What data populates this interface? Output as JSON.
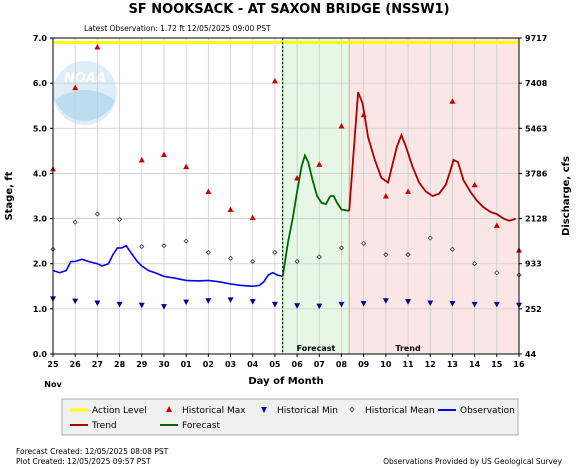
{
  "title": "SF NOOKSACK - AT SAXON BRIDGE  (NSSW1)",
  "latest_observation": "Latest Observation: 1.72 ft 12/05/2025 09:00 PST",
  "watermark": "NOAA",
  "colors": {
    "action": "#ffff00",
    "forecast_bg": "#e6f7e6",
    "trend_bg": "#fbe6e6",
    "observation": "#0000ff",
    "forecast": "#006600",
    "trend": "#aa0000",
    "hist_max": "#cc0000",
    "hist_min": "#000099",
    "grid": "#cccccc"
  },
  "chart_data": {
    "type": "line",
    "xlabel": "Day of Month",
    "x_month_label": "Nov",
    "ylabel_left": "Stage, ft",
    "ylabel_right": "Discharge, cfs",
    "ylim": [
      0,
      7
    ],
    "y_ticks": [
      "0.0",
      "1.0",
      "2.0",
      "3.0",
      "4.0",
      "5.0",
      "6.0",
      "7.0"
    ],
    "right_ticks": [
      {
        "label": "44",
        "stage": 0
      },
      {
        "label": "252",
        "stage": 1.0
      },
      {
        "label": "933",
        "stage": 2.0
      },
      {
        "label": "2128",
        "stage": 3.0
      },
      {
        "label": "3786",
        "stage": 4.0
      },
      {
        "label": "5463",
        "stage": 5.0
      },
      {
        "label": "7408",
        "stage": 6.0
      },
      {
        "label": "9717",
        "stage": 7.0
      }
    ],
    "x_range": [
      0,
      21
    ],
    "x_tick_labels": [
      "25",
      "26",
      "27",
      "28",
      "29",
      "30",
      "01",
      "02",
      "03",
      "04",
      "05",
      "06",
      "07",
      "08",
      "09",
      "10",
      "11",
      "12",
      "13",
      "14",
      "15",
      "16"
    ],
    "action_level": 6.9,
    "now_x": 10.35,
    "forecast_start": 10.35,
    "trend_start": 13.35,
    "trend_end": 21,
    "band_labels": {
      "forecast": "Forecast",
      "trend": "Trend"
    },
    "observation": [
      [
        0,
        1.85
      ],
      [
        0.3,
        1.8
      ],
      [
        0.6,
        1.85
      ],
      [
        0.8,
        2.05
      ],
      [
        1,
        2.05
      ],
      [
        1.3,
        2.1
      ],
      [
        1.6,
        2.05
      ],
      [
        2,
        2.0
      ],
      [
        2.2,
        1.95
      ],
      [
        2.5,
        2.0
      ],
      [
        2.7,
        2.2
      ],
      [
        2.9,
        2.35
      ],
      [
        3.1,
        2.35
      ],
      [
        3.3,
        2.4
      ],
      [
        3.5,
        2.25
      ],
      [
        3.8,
        2.05
      ],
      [
        4,
        1.95
      ],
      [
        4.3,
        1.85
      ],
      [
        4.6,
        1.8
      ],
      [
        5,
        1.72
      ],
      [
        5.5,
        1.68
      ],
      [
        6,
        1.63
      ],
      [
        6.5,
        1.62
      ],
      [
        7,
        1.63
      ],
      [
        7.5,
        1.6
      ],
      [
        8,
        1.55
      ],
      [
        8.5,
        1.52
      ],
      [
        9,
        1.5
      ],
      [
        9.3,
        1.52
      ],
      [
        9.5,
        1.6
      ],
      [
        9.7,
        1.75
      ],
      [
        9.9,
        1.8
      ],
      [
        10.1,
        1.75
      ],
      [
        10.35,
        1.72
      ]
    ],
    "forecast": [
      [
        10.35,
        1.72
      ],
      [
        10.6,
        2.5
      ],
      [
        10.8,
        3.0
      ],
      [
        11,
        3.6
      ],
      [
        11.2,
        4.15
      ],
      [
        11.35,
        4.4
      ],
      [
        11.5,
        4.25
      ],
      [
        11.7,
        3.85
      ],
      [
        11.9,
        3.5
      ],
      [
        12.1,
        3.35
      ],
      [
        12.3,
        3.32
      ],
      [
        12.5,
        3.5
      ],
      [
        12.65,
        3.5
      ],
      [
        12.8,
        3.35
      ],
      [
        13,
        3.2
      ],
      [
        13.35,
        3.17
      ]
    ],
    "trend": [
      [
        13.35,
        3.17
      ],
      [
        13.55,
        4.5
      ],
      [
        13.75,
        5.8
      ],
      [
        13.95,
        5.55
      ],
      [
        14.2,
        4.8
      ],
      [
        14.5,
        4.3
      ],
      [
        14.8,
        3.9
      ],
      [
        15.1,
        3.8
      ],
      [
        15.3,
        4.2
      ],
      [
        15.5,
        4.6
      ],
      [
        15.7,
        4.85
      ],
      [
        15.9,
        4.6
      ],
      [
        16.2,
        4.15
      ],
      [
        16.5,
        3.8
      ],
      [
        16.8,
        3.6
      ],
      [
        17.1,
        3.5
      ],
      [
        17.4,
        3.55
      ],
      [
        17.7,
        3.75
      ],
      [
        17.9,
        4.05
      ],
      [
        18.05,
        4.3
      ],
      [
        18.25,
        4.25
      ],
      [
        18.5,
        3.85
      ],
      [
        18.8,
        3.6
      ],
      [
        19.1,
        3.4
      ],
      [
        19.4,
        3.25
      ],
      [
        19.7,
        3.15
      ],
      [
        20,
        3.1
      ],
      [
        20.3,
        3.0
      ],
      [
        20.55,
        2.95
      ],
      [
        20.7,
        2.97
      ],
      [
        20.85,
        3.0
      ]
    ],
    "historical_max": [
      [
        0,
        4.1
      ],
      [
        1,
        5.9
      ],
      [
        2,
        6.8
      ],
      [
        4,
        4.3
      ],
      [
        5,
        4.42
      ],
      [
        6,
        4.15
      ],
      [
        7,
        3.6
      ],
      [
        8,
        3.2
      ],
      [
        9,
        3.02
      ],
      [
        10,
        6.05
      ],
      [
        11,
        3.9
      ],
      [
        12,
        4.2
      ],
      [
        13,
        5.05
      ],
      [
        14,
        5.3
      ],
      [
        15,
        3.5
      ],
      [
        16,
        3.6
      ],
      [
        18,
        5.6
      ],
      [
        19,
        3.75
      ],
      [
        20,
        2.85
      ],
      [
        21,
        2.3
      ]
    ],
    "historical_min": [
      [
        0,
        1.22
      ],
      [
        1,
        1.17
      ],
      [
        2,
        1.13
      ],
      [
        3,
        1.1
      ],
      [
        4,
        1.08
      ],
      [
        5,
        1.05
      ],
      [
        6,
        1.15
      ],
      [
        7,
        1.18
      ],
      [
        8,
        1.2
      ],
      [
        9,
        1.16
      ],
      [
        10,
        1.1
      ],
      [
        11,
        1.07
      ],
      [
        12,
        1.06
      ],
      [
        13,
        1.1
      ],
      [
        14,
        1.12
      ],
      [
        15,
        1.18
      ],
      [
        16,
        1.16
      ],
      [
        17,
        1.13
      ],
      [
        18,
        1.12
      ],
      [
        19,
        1.1
      ],
      [
        20,
        1.1
      ],
      [
        21,
        1.08
      ]
    ],
    "historical_mean": [
      [
        0,
        2.32
      ],
      [
        1,
        2.92
      ],
      [
        2,
        3.1
      ],
      [
        3,
        2.98
      ],
      [
        4,
        2.38
      ],
      [
        5,
        2.4
      ],
      [
        6,
        2.5
      ],
      [
        7,
        2.25
      ],
      [
        8,
        2.12
      ],
      [
        9,
        2.05
      ],
      [
        10,
        2.25
      ],
      [
        11,
        2.05
      ],
      [
        12,
        2.15
      ],
      [
        13,
        2.35
      ],
      [
        14,
        2.45
      ],
      [
        15,
        2.2
      ],
      [
        16,
        2.2
      ],
      [
        17,
        2.57
      ],
      [
        18,
        2.32
      ],
      [
        19,
        2.0
      ],
      [
        20,
        1.8
      ],
      [
        21,
        1.75
      ]
    ]
  },
  "legend": [
    {
      "key": "action",
      "label": "Action Level"
    },
    {
      "key": "hist_max",
      "label": "Historical Max"
    },
    {
      "key": "hist_min",
      "label": "Historical Min"
    },
    {
      "key": "hist_mean",
      "label": "Historical Mean"
    },
    {
      "key": "observation",
      "label": "Observation"
    },
    {
      "key": "trend",
      "label": "Trend"
    },
    {
      "key": "forecast",
      "label": "Forecast"
    }
  ],
  "footer": {
    "forecast_created": "Forecast Created:  12/05/2025 08:08 PST",
    "plot_created": "Plot Created:  12/05/2025 09:57 PST",
    "source": "Observations Provided by US Geological Survey"
  }
}
